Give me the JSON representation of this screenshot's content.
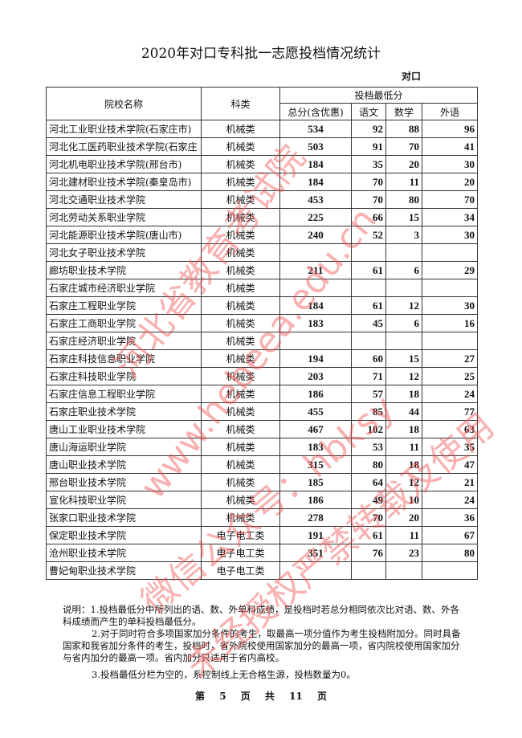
{
  "title": "2020年对口专科批一志愿投档情况统计",
  "subtitle": "对口",
  "headers": {
    "school": "院校名称",
    "category": "科类",
    "min_score_group": "投档最低分",
    "total": "总分(含优惠)",
    "chinese": "语文",
    "math": "数学",
    "english": "外语"
  },
  "rows": [
    {
      "school": "河北工业职业技术学院(石家庄市)",
      "category": "机械类",
      "total": "534",
      "chinese": "92",
      "math": "88",
      "english": "96"
    },
    {
      "school": "河北化工医药职业技术学院(石家庄",
      "category": "机械类",
      "total": "503",
      "chinese": "91",
      "math": "70",
      "english": "41"
    },
    {
      "school": "河北机电职业技术学院(邢台市)",
      "category": "机械类",
      "total": "184",
      "chinese": "35",
      "math": "20",
      "english": "30"
    },
    {
      "school": "河北建材职业技术学院(秦皇岛市)",
      "category": "机械类",
      "total": "184",
      "chinese": "70",
      "math": "11",
      "english": "20"
    },
    {
      "school": "河北交通职业技术学院",
      "category": "机械类",
      "total": "453",
      "chinese": "70",
      "math": "80",
      "english": "70"
    },
    {
      "school": "河北劳动关系职业学院",
      "category": "机械类",
      "total": "225",
      "chinese": "66",
      "math": "15",
      "english": "34"
    },
    {
      "school": "河北能源职业技术学院(唐山市)",
      "category": "机械类",
      "total": "240",
      "chinese": "52",
      "math": "3",
      "english": "30"
    },
    {
      "school": "河北女子职业技术学院",
      "category": "机械类",
      "total": "",
      "chinese": "",
      "math": "",
      "english": ""
    },
    {
      "school": "廊坊职业技术学院",
      "category": "机械类",
      "total": "211",
      "chinese": "61",
      "math": "6",
      "english": "29"
    },
    {
      "school": "石家庄城市经济职业学院",
      "category": "机械类",
      "total": "",
      "chinese": "",
      "math": "",
      "english": ""
    },
    {
      "school": "石家庄工程职业学院",
      "category": "机械类",
      "total": "184",
      "chinese": "61",
      "math": "12",
      "english": "30"
    },
    {
      "school": "石家庄工商职业学院",
      "category": "机械类",
      "total": "183",
      "chinese": "45",
      "math": "6",
      "english": "16"
    },
    {
      "school": "石家庄经济职业学院",
      "category": "机械类",
      "total": "",
      "chinese": "",
      "math": "",
      "english": ""
    },
    {
      "school": "石家庄科技信息职业学院",
      "category": "机械类",
      "total": "194",
      "chinese": "60",
      "math": "15",
      "english": "27"
    },
    {
      "school": "石家庄科技职业学院",
      "category": "机械类",
      "total": "203",
      "chinese": "71",
      "math": "12",
      "english": "25"
    },
    {
      "school": "石家庄信息工程职业学院",
      "category": "机械类",
      "total": "186",
      "chinese": "57",
      "math": "18",
      "english": "24"
    },
    {
      "school": "石家庄职业技术学院",
      "category": "机械类",
      "total": "455",
      "chinese": "85",
      "math": "44",
      "english": "77"
    },
    {
      "school": "唐山工业职业技术学院",
      "category": "机械类",
      "total": "467",
      "chinese": "102",
      "math": "18",
      "english": "63"
    },
    {
      "school": "唐山海运职业学院",
      "category": "机械类",
      "total": "183",
      "chinese": "53",
      "math": "11",
      "english": "35"
    },
    {
      "school": "唐山职业技术学院",
      "category": "机械类",
      "total": "315",
      "chinese": "80",
      "math": "18",
      "english": "47"
    },
    {
      "school": "邢台职业技术学院",
      "category": "机械类",
      "total": "185",
      "chinese": "64",
      "math": "12",
      "english": "21"
    },
    {
      "school": "宣化科技职业学院",
      "category": "机械类",
      "total": "186",
      "chinese": "49",
      "math": "10",
      "english": "24"
    },
    {
      "school": "张家口职业技术学院",
      "category": "机械类",
      "total": "278",
      "chinese": "70",
      "math": "20",
      "english": "36"
    },
    {
      "school": "保定职业技术学院",
      "category": "电子电工类",
      "total": "191",
      "chinese": "61",
      "math": "11",
      "english": "67"
    },
    {
      "school": "沧州职业技术学院",
      "category": "电子电工类",
      "total": "351",
      "chinese": "76",
      "math": "23",
      "english": "80"
    },
    {
      "school": "曹妃甸职业技术学院",
      "category": "电子电工类",
      "total": "",
      "chinese": "",
      "math": "",
      "english": ""
    }
  ],
  "notes": {
    "n1": "说明：1.投档最低分中所列出的语、数、外单科成绩，是投档时若总分相同依次比对语、数、外各科成绩而产生的单科投档最低分。",
    "n2": "2.对于同时符合多项国家加分条件的考生，取最高一项分值作为考生投档附加分。同时具备国家和我省加分条件的考生，投档时，省外院校使用国家加分的最高一项，省内院校使用国家加分与省内加分的最高一项。省内加分只适用于省内高校。",
    "n3": "3.投档最低分栏为空的，系控制线上无合格生源，投档数量为0。"
  },
  "footer": "第 5 页 共 11 页",
  "watermark": [
    "河北省教育考试院",
    "www.hebeea.edu.cn",
    "微信公众号：hbksy",
    "未经授权严禁转载及使用"
  ],
  "colors": {
    "watermark": "#f05050"
  }
}
